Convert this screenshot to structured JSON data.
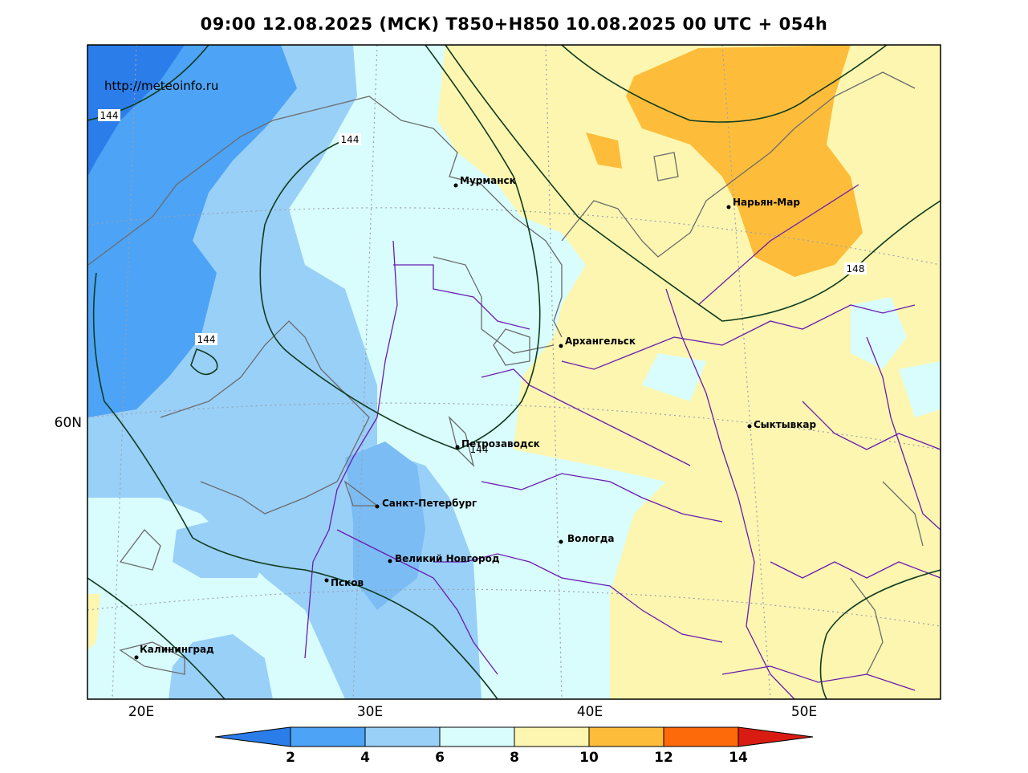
{
  "title": "09:00 12.08.2025 (МСК) T850+H850 10.08.2025 00 UTC + 054h",
  "watermark": "http://meteoinfo.ru",
  "cities": [
    {
      "name": "Мурманск"
    },
    {
      "name": "Нарьян-Мар"
    },
    {
      "name": "Архангельск"
    },
    {
      "name": "Сыктывкар"
    },
    {
      "name": "Петрозаводск"
    },
    {
      "name": "Санкт-Петербург"
    },
    {
      "name": "Вологда"
    },
    {
      "name": "Великий Новгород"
    },
    {
      "name": "Псков"
    },
    {
      "name": "Калининград"
    }
  ],
  "contour_labels": [
    "144",
    "144",
    "144",
    "148",
    "144"
  ],
  "axes": {
    "lon_labels": [
      "20E",
      "30E",
      "40E",
      "50E"
    ],
    "lat_labels": [
      "60N"
    ]
  },
  "colorbar": {
    "ticks": [
      "2",
      "4",
      "6",
      "8",
      "10",
      "12",
      "14"
    ],
    "colors": [
      "#2b7de9",
      "#4da3f5",
      "#99d0f8",
      "#d9fdfd",
      "#fdf6b0",
      "#fdbd3a",
      "#fd6a0a",
      "#d91c12"
    ]
  },
  "colors": {
    "t_0_2": "#2b7de9",
    "t_2_4": "#4da3f5",
    "t_4_6": "#99d0f8",
    "t_6_8": "#d9fdfd",
    "t_8_10": "#fdf6b0",
    "t_10_12": "#fdbd3a",
    "coast": "#6b6b6b",
    "border": "#6a1bb0",
    "contour": "#0f3b1f"
  }
}
